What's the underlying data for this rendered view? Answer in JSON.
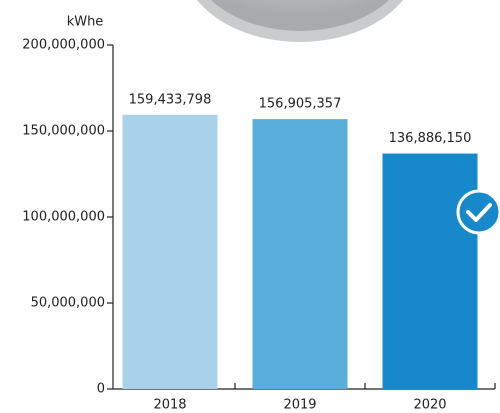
{
  "chart_data": {
    "type": "bar",
    "y_axis_label": "kWhe",
    "categories": [
      "2018",
      "2019",
      "2020"
    ],
    "values": [
      159433798,
      156905357,
      136886150
    ],
    "value_labels": [
      "159,433,798",
      "156,905,357",
      "136,886,150"
    ],
    "colors": [
      "#a9d2ea",
      "#5aaedb",
      "#1788c9"
    ],
    "ylim": [
      0,
      200000000
    ],
    "yticks": [
      0,
      {
        "value": 50000000,
        "label": "50,000,000"
      },
      {
        "value": 100000000,
        "label": "100,000,000"
      },
      {
        "value": 150000000,
        "label": "150,000,000"
      },
      {
        "value": 200000000,
        "label": "200,000,000"
      }
    ]
  }
}
